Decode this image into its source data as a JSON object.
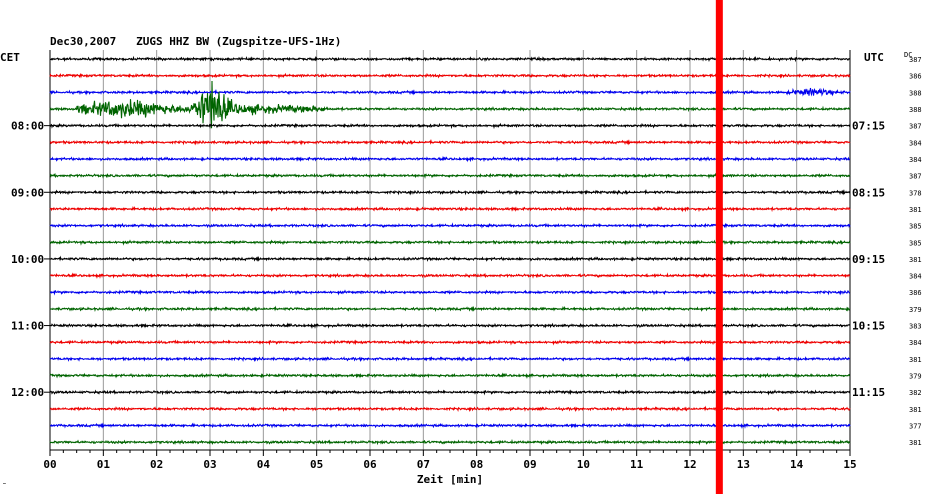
{
  "title": "Dec30,2007   ZUGS HHZ BW (Zugspitze-UFS-1Hz)",
  "left_zone_label": "CET",
  "right_zone_label": "UTC",
  "dc_header": "DC",
  "corner_mark": "˜",
  "chart_data": {
    "type": "helicorder",
    "xlabel": "Zeit [min]",
    "xlim": [
      0,
      15
    ],
    "x_ticks": [
      "00",
      "01",
      "02",
      "03",
      "04",
      "05",
      "06",
      "07",
      "08",
      "09",
      "10",
      "11",
      "12",
      "13",
      "14",
      "15"
    ],
    "num_traces": 24,
    "trace_colors": [
      "#000000",
      "#ee0000",
      "#0000ee",
      "#006400"
    ],
    "left_hour_labels": [
      {
        "row": 4,
        "label": "08:00"
      },
      {
        "row": 8,
        "label": "09:00"
      },
      {
        "row": 12,
        "label": "10:00"
      },
      {
        "row": 16,
        "label": "11:00"
      },
      {
        "row": 20,
        "label": "12:00"
      }
    ],
    "right_hour_labels": [
      {
        "row": 4,
        "label": "07:15"
      },
      {
        "row": 8,
        "label": "08:15"
      },
      {
        "row": 12,
        "label": "09:15"
      },
      {
        "row": 16,
        "label": "10:15"
      },
      {
        "row": 20,
        "label": "11:15"
      }
    ],
    "dc_values": [
      "387",
      "386",
      "388",
      "388",
      "387",
      "384",
      "384",
      "387",
      "378",
      "381",
      "385",
      "385",
      "381",
      "384",
      "386",
      "379",
      "383",
      "384",
      "381",
      "379",
      "382",
      "381",
      "377",
      "381"
    ],
    "events": [
      {
        "row": 3,
        "start_min": 0.5,
        "end_min": 5.2,
        "peak_min": 3.0,
        "peak_amplitude": "large"
      },
      {
        "row": 2,
        "start_min": 13.8,
        "end_min": 15.0,
        "peak_min": 14.3,
        "peak_amplitude": "small"
      }
    ],
    "marker": {
      "minute": 12.55,
      "color": "#ff0000"
    }
  }
}
